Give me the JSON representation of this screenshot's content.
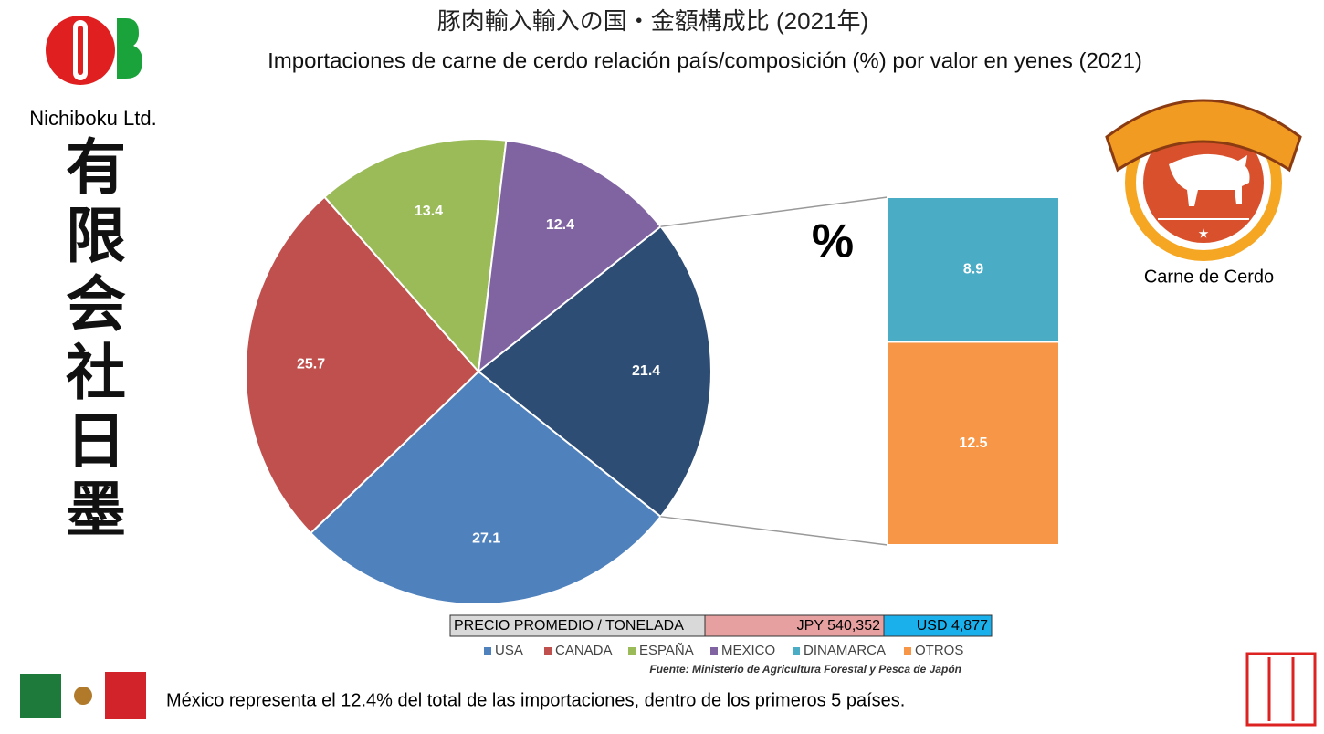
{
  "chart_data": {
    "type": "pie",
    "title": "豚肉輸入輸入の国・金額構成比 (2021年)",
    "subtitle": "Importaciones de carne de cerdo relación país/composición (%) por  valor en yenes  (2021)",
    "categories": [
      "USA",
      "CANADA",
      "ESPAÑA",
      "MEXICO",
      "DINAMARCA",
      "OTROS"
    ],
    "values": [
      27.1,
      25.7,
      13.4,
      12.4,
      8.9,
      12.5
    ],
    "colors": [
      "#4f81bd",
      "#c0504d",
      "#9bbb59",
      "#8064a2",
      "#4bacc6",
      "#f79646"
    ],
    "grouped_value": 21.4,
    "grouped_color": "#2e4d74",
    "unit_label": "%",
    "source": "Fuente: Ministerio de Agricultura Forestal y Pesca de Japón"
  },
  "price_table": {
    "label": "PRECIO PROMEDIO / TONELADA",
    "jpy": "JPY 540,352",
    "usd": "USD 4,877"
  },
  "branding": {
    "company": "Nichiboku Ltd.",
    "vertical_name": "有限会社日墨",
    "badge_caption": "Carne de Cerdo"
  },
  "footer": "México representa  el 12.4% del total de las importaciones, dentro de los primeros 5 países."
}
